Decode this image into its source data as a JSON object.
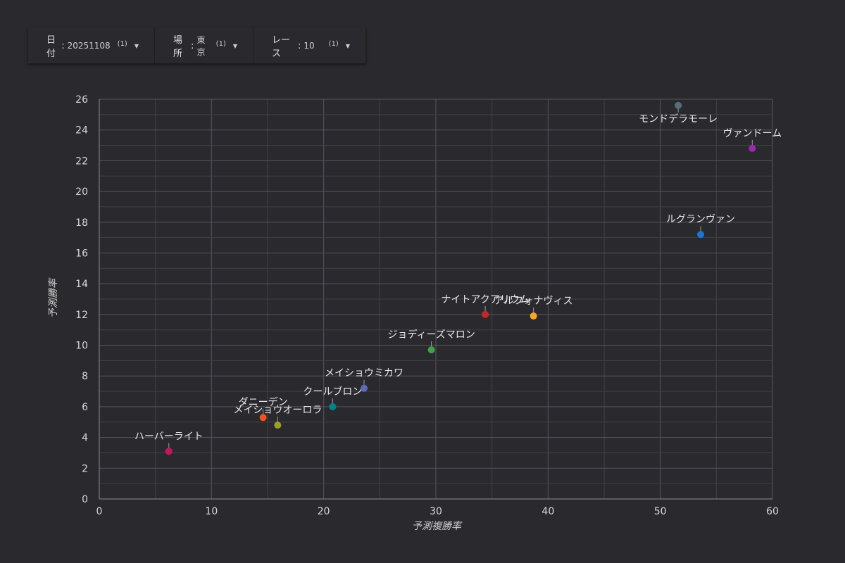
{
  "filters": [
    {
      "label": "日付",
      "value": "20251108",
      "count": "(1)"
    },
    {
      "label": "場所",
      "value": "東京",
      "count": "(1)"
    },
    {
      "label": "レース",
      "value": "10",
      "count": "(1)"
    }
  ],
  "chart_data": {
    "type": "scatter",
    "xlabel": "予測複勝率",
    "ylabel": "予測勝率",
    "xlim": [
      0,
      60
    ],
    "ylim": [
      0,
      26
    ],
    "x_ticks": [
      0,
      10,
      20,
      30,
      40,
      50,
      60
    ],
    "y_ticks": [
      0,
      2,
      4,
      6,
      8,
      10,
      12,
      14,
      16,
      18,
      20,
      22,
      24,
      26
    ],
    "grid": true,
    "points": [
      {
        "name": "モンドデラモーレ",
        "x": 51.6,
        "y": 25.6,
        "color": "#546e7a",
        "label_pos": "below"
      },
      {
        "name": "ヴァンドーム",
        "x": 58.2,
        "y": 22.8,
        "color": "#9c27b0",
        "label_pos": "above"
      },
      {
        "name": "ルグランヴァン",
        "x": 53.6,
        "y": 17.2,
        "color": "#1976d2",
        "label_pos": "above"
      },
      {
        "name": "ナイトアクアリウム",
        "x": 34.4,
        "y": 12.0,
        "color": "#c62828",
        "label_pos": "above"
      },
      {
        "name": "アルフォナヴィス",
        "x": 38.7,
        "y": 11.9,
        "color": "#f9a825",
        "label_pos": "above"
      },
      {
        "name": "ジョディーズマロン",
        "x": 29.6,
        "y": 9.7,
        "color": "#43a047",
        "label_pos": "above"
      },
      {
        "name": "メイショウミカワ",
        "x": 23.6,
        "y": 7.2,
        "color": "#5c6bc0",
        "label_pos": "above"
      },
      {
        "name": "クールブロン",
        "x": 20.8,
        "y": 6.0,
        "color": "#00838f",
        "label_pos": "above"
      },
      {
        "name": "ダニーデン",
        "x": 14.6,
        "y": 5.3,
        "color": "#f4511e",
        "label_pos": "above"
      },
      {
        "name": "メイショウオーロラ",
        "x": 15.9,
        "y": 4.8,
        "color": "#9e9d24",
        "label_pos": "above"
      },
      {
        "name": "ハーバーライト",
        "x": 6.2,
        "y": 3.1,
        "color": "#c2185b",
        "label_pos": "above"
      }
    ]
  }
}
